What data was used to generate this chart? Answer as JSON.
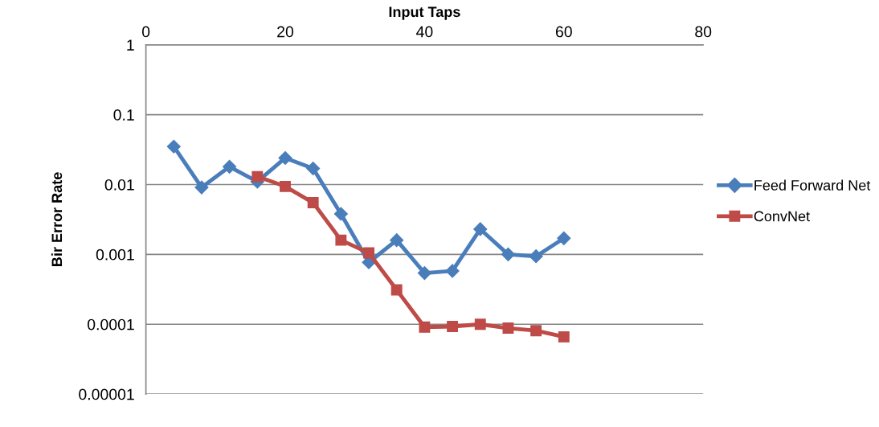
{
  "chart_data": {
    "type": "line",
    "xlabel": "Input Taps",
    "ylabel": "Bir Error Rate",
    "log": "y",
    "xlim": [
      0,
      80
    ],
    "xticks": [
      0,
      20,
      40,
      60,
      80
    ],
    "ylim": [
      1e-05,
      1
    ],
    "yticks": [
      {
        "value": 1e-05,
        "label": "0.00001"
      },
      {
        "value": 0.0001,
        "label": "0.0001"
      },
      {
        "value": 0.001,
        "label": "0.001"
      },
      {
        "value": 0.01,
        "label": "0.01"
      },
      {
        "value": 0.1,
        "label": "0.1"
      },
      {
        "value": 1,
        "label": "1"
      }
    ],
    "grid": "y",
    "legend": "right",
    "series": [
      {
        "name": "Feed Forward Net",
        "color": "#4a7ebb",
        "marker": "diamond",
        "x": [
          4,
          8,
          12,
          16,
          20,
          24,
          28,
          32,
          36,
          40,
          44,
          48,
          52,
          56,
          60
        ],
        "values": [
          0.035,
          0.0091,
          0.018,
          0.011,
          0.024,
          0.017,
          0.0038,
          0.00077,
          0.0016,
          0.00054,
          0.00058,
          0.0023,
          0.001,
          0.00094,
          0.0017
        ]
      },
      {
        "name": "ConvNet",
        "color": "#be4b48",
        "marker": "square",
        "x": [
          16,
          20,
          24,
          28,
          32,
          36,
          40,
          44,
          48,
          52,
          56,
          60
        ],
        "values": [
          0.013,
          0.0094,
          0.0055,
          0.0016,
          0.00105,
          0.00031,
          9.1e-05,
          9.3e-05,
          0.0001,
          8.8e-05,
          8.1e-05,
          6.6e-05
        ]
      }
    ]
  }
}
